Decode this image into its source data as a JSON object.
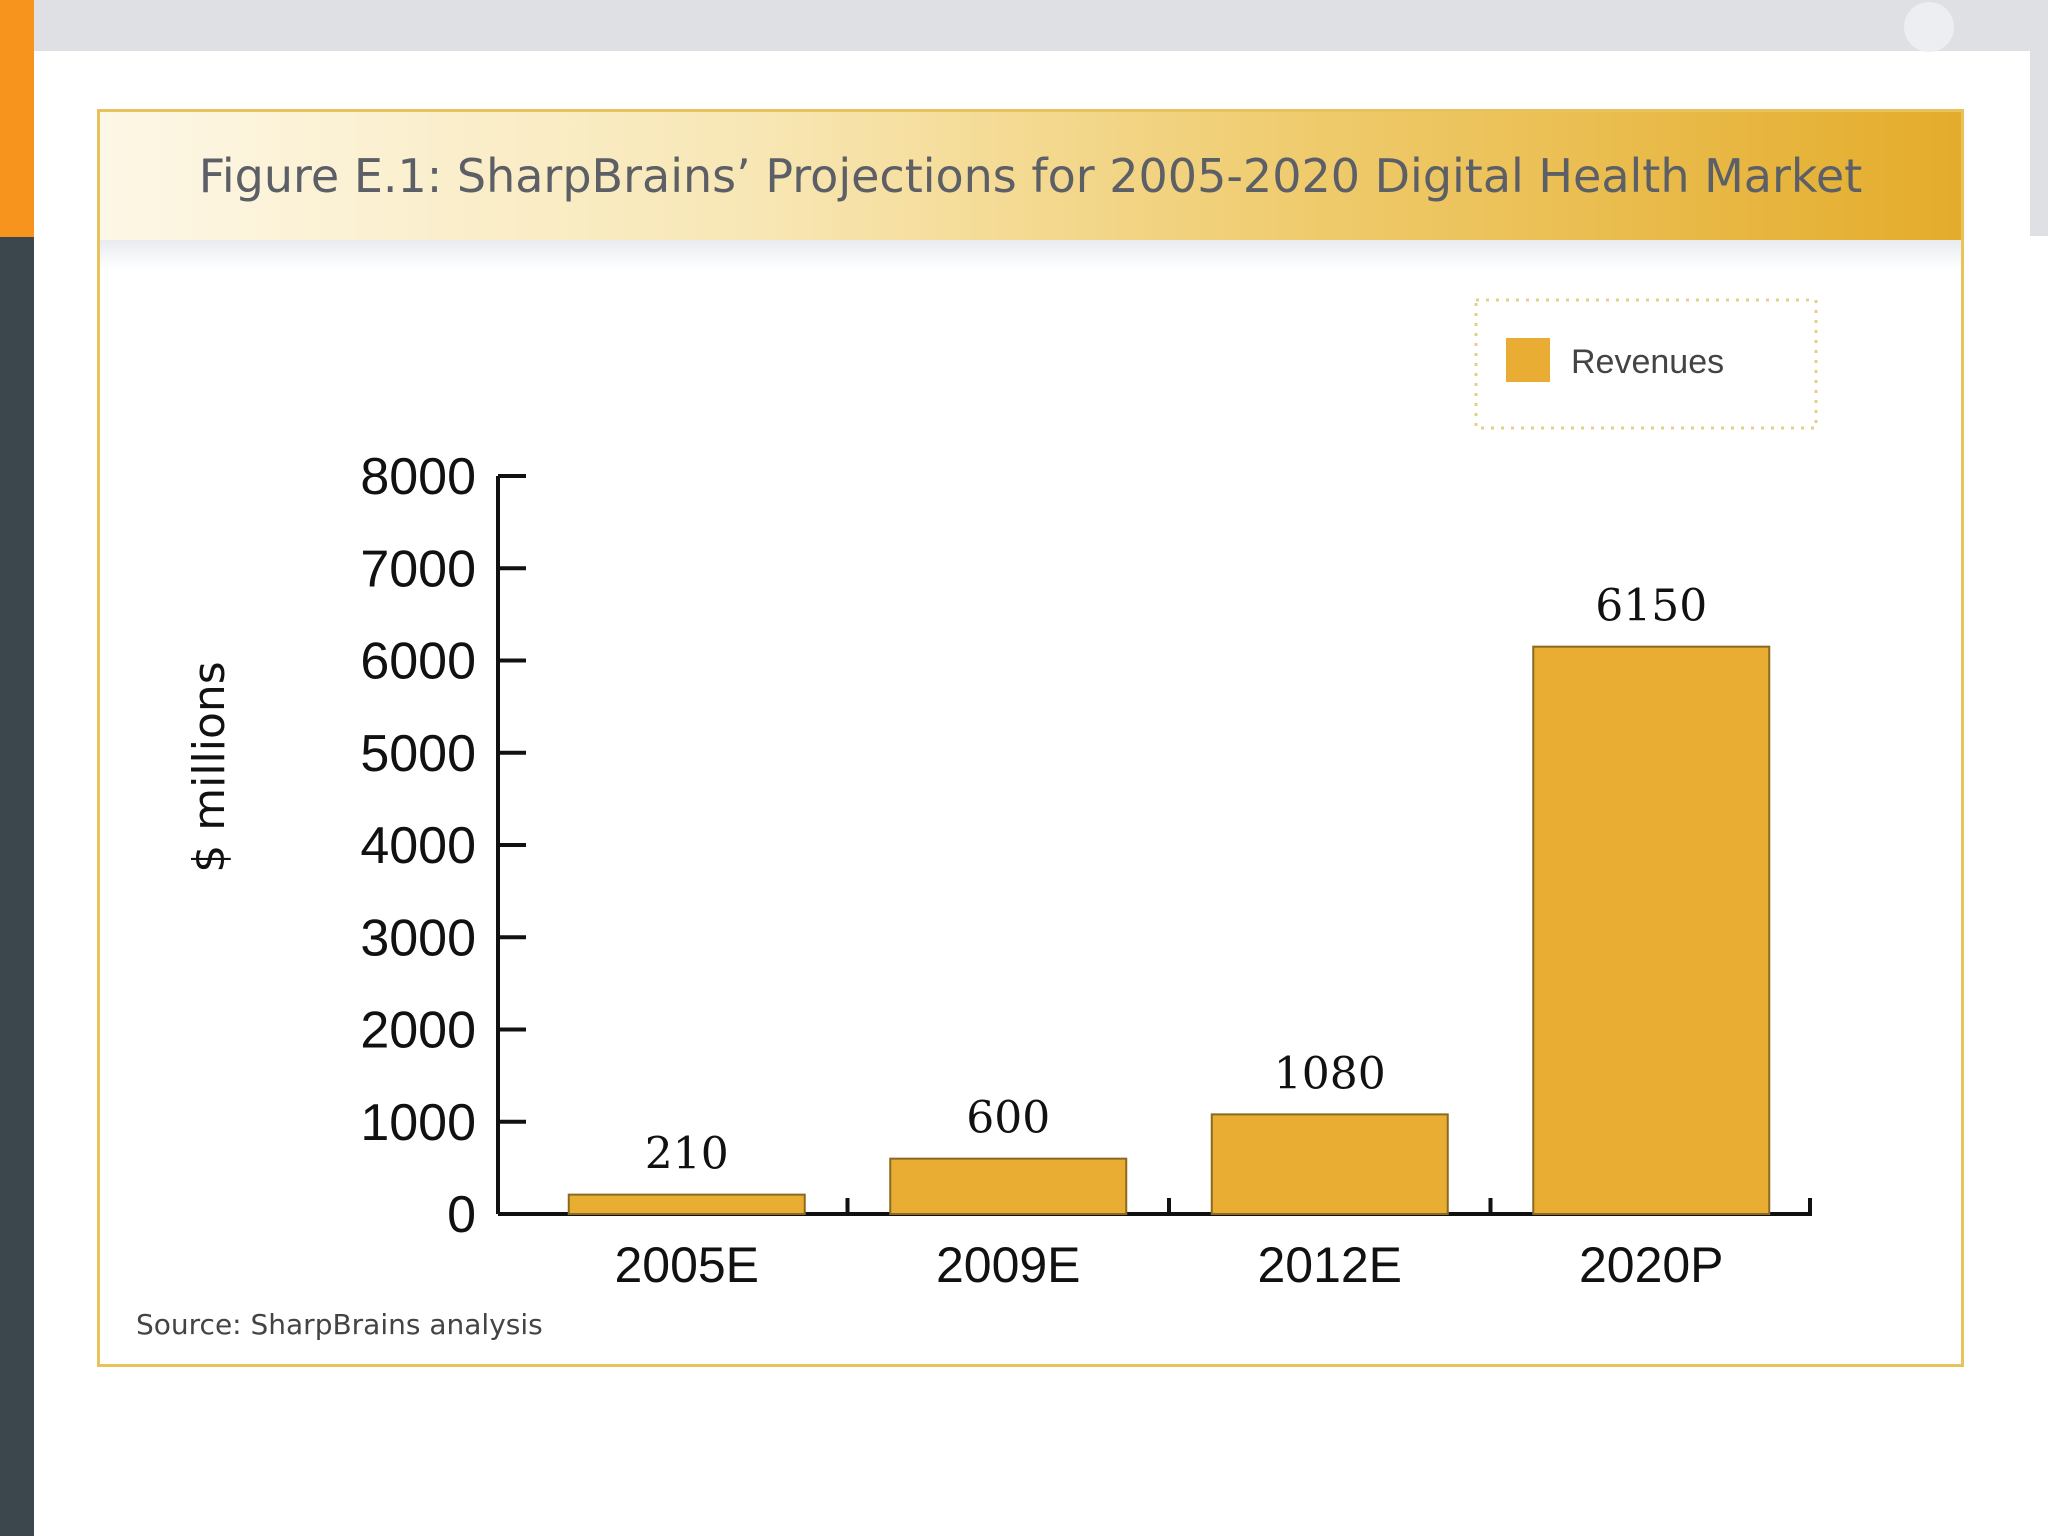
{
  "colors": {
    "bar": "#e8ad32",
    "bar_stroke": "#8a6a20",
    "frame": "#e9c25c",
    "accent_orange": "#f7941d",
    "sidebar_dark": "#3c474d"
  },
  "figure": {
    "title": "Figure E.1: SharpBrains’ Projections for 2005-2020 Digital Health Market",
    "source": "Source: SharpBrains analysis"
  },
  "chart_data": {
    "type": "bar",
    "title": "Figure E.1: SharpBrains’ Projections for 2005-2020 Digital Health Market",
    "categories": [
      "2005E",
      "2009E",
      "2012E",
      "2020P"
    ],
    "series": [
      {
        "name": "Revenues",
        "values": [
          210,
          600,
          1080,
          6150
        ],
        "labels": [
          "210",
          "600",
          "1080",
          "6150"
        ]
      }
    ],
    "xlabel": "",
    "ylabel": "$ millions",
    "ylim": [
      0,
      8000
    ],
    "yticks": [
      0,
      1000,
      2000,
      3000,
      4000,
      5000,
      6000,
      7000,
      8000
    ],
    "grid": false,
    "legend": {
      "position": "top-right",
      "entries": [
        "Revenues"
      ]
    }
  }
}
